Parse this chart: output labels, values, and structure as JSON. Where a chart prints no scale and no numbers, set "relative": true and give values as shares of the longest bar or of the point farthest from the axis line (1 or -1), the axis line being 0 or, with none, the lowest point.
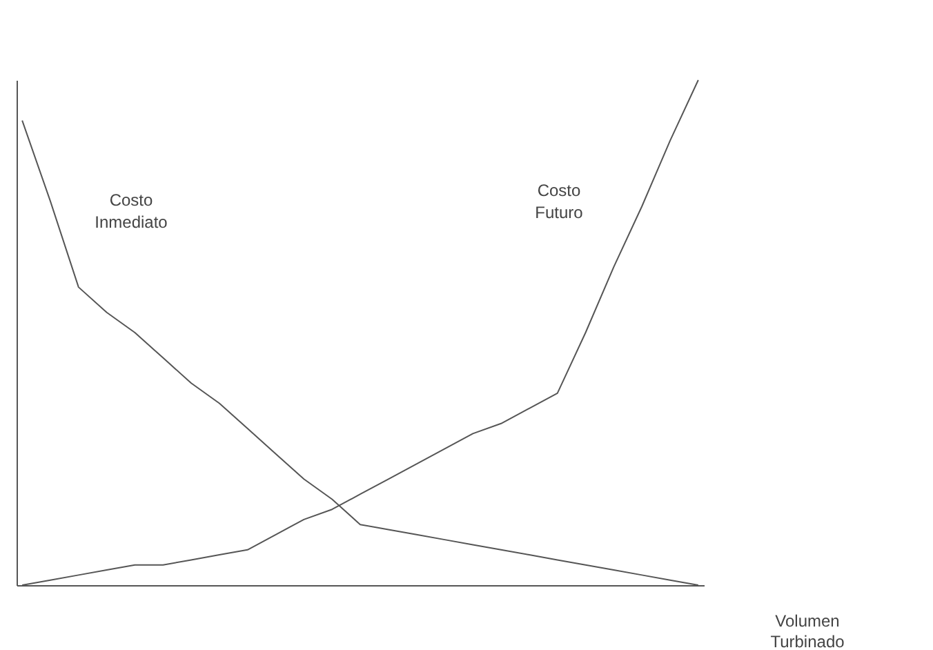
{
  "chart_data": {
    "type": "line",
    "relative": true,
    "xlabel": "Volumen Turbinado",
    "categories": [
      null,
      null,
      null,
      null,
      null,
      null,
      null,
      null,
      null,
      null,
      null,
      null,
      null,
      null,
      null,
      null,
      null,
      null,
      null,
      null,
      null,
      null,
      null,
      null,
      null
    ],
    "series": [
      {
        "name": "Costo Inmediato",
        "color": "#555555",
        "values": [
          0.92,
          0.76,
          0.59,
          0.54,
          0.5,
          0.45,
          0.4,
          0.36,
          0.31,
          0.26,
          0.21,
          0.17,
          0.12,
          0.11,
          0.1,
          0.09,
          0.08,
          0.07,
          0.06,
          0.05,
          0.04,
          0.03,
          0.02,
          0.01,
          0
        ]
      },
      {
        "name": "Costo Futuro",
        "color": "#555555",
        "values": [
          0,
          0.01,
          0.02,
          0.03,
          0.04,
          0.04,
          0.05,
          0.06,
          0.07,
          0.1,
          0.13,
          0.15,
          0.18,
          0.21,
          0.24,
          0.27,
          0.3,
          0.32,
          0.35,
          0.38,
          0.5,
          0.63,
          0.75,
          0.88,
          1
        ]
      }
    ]
  }
}
